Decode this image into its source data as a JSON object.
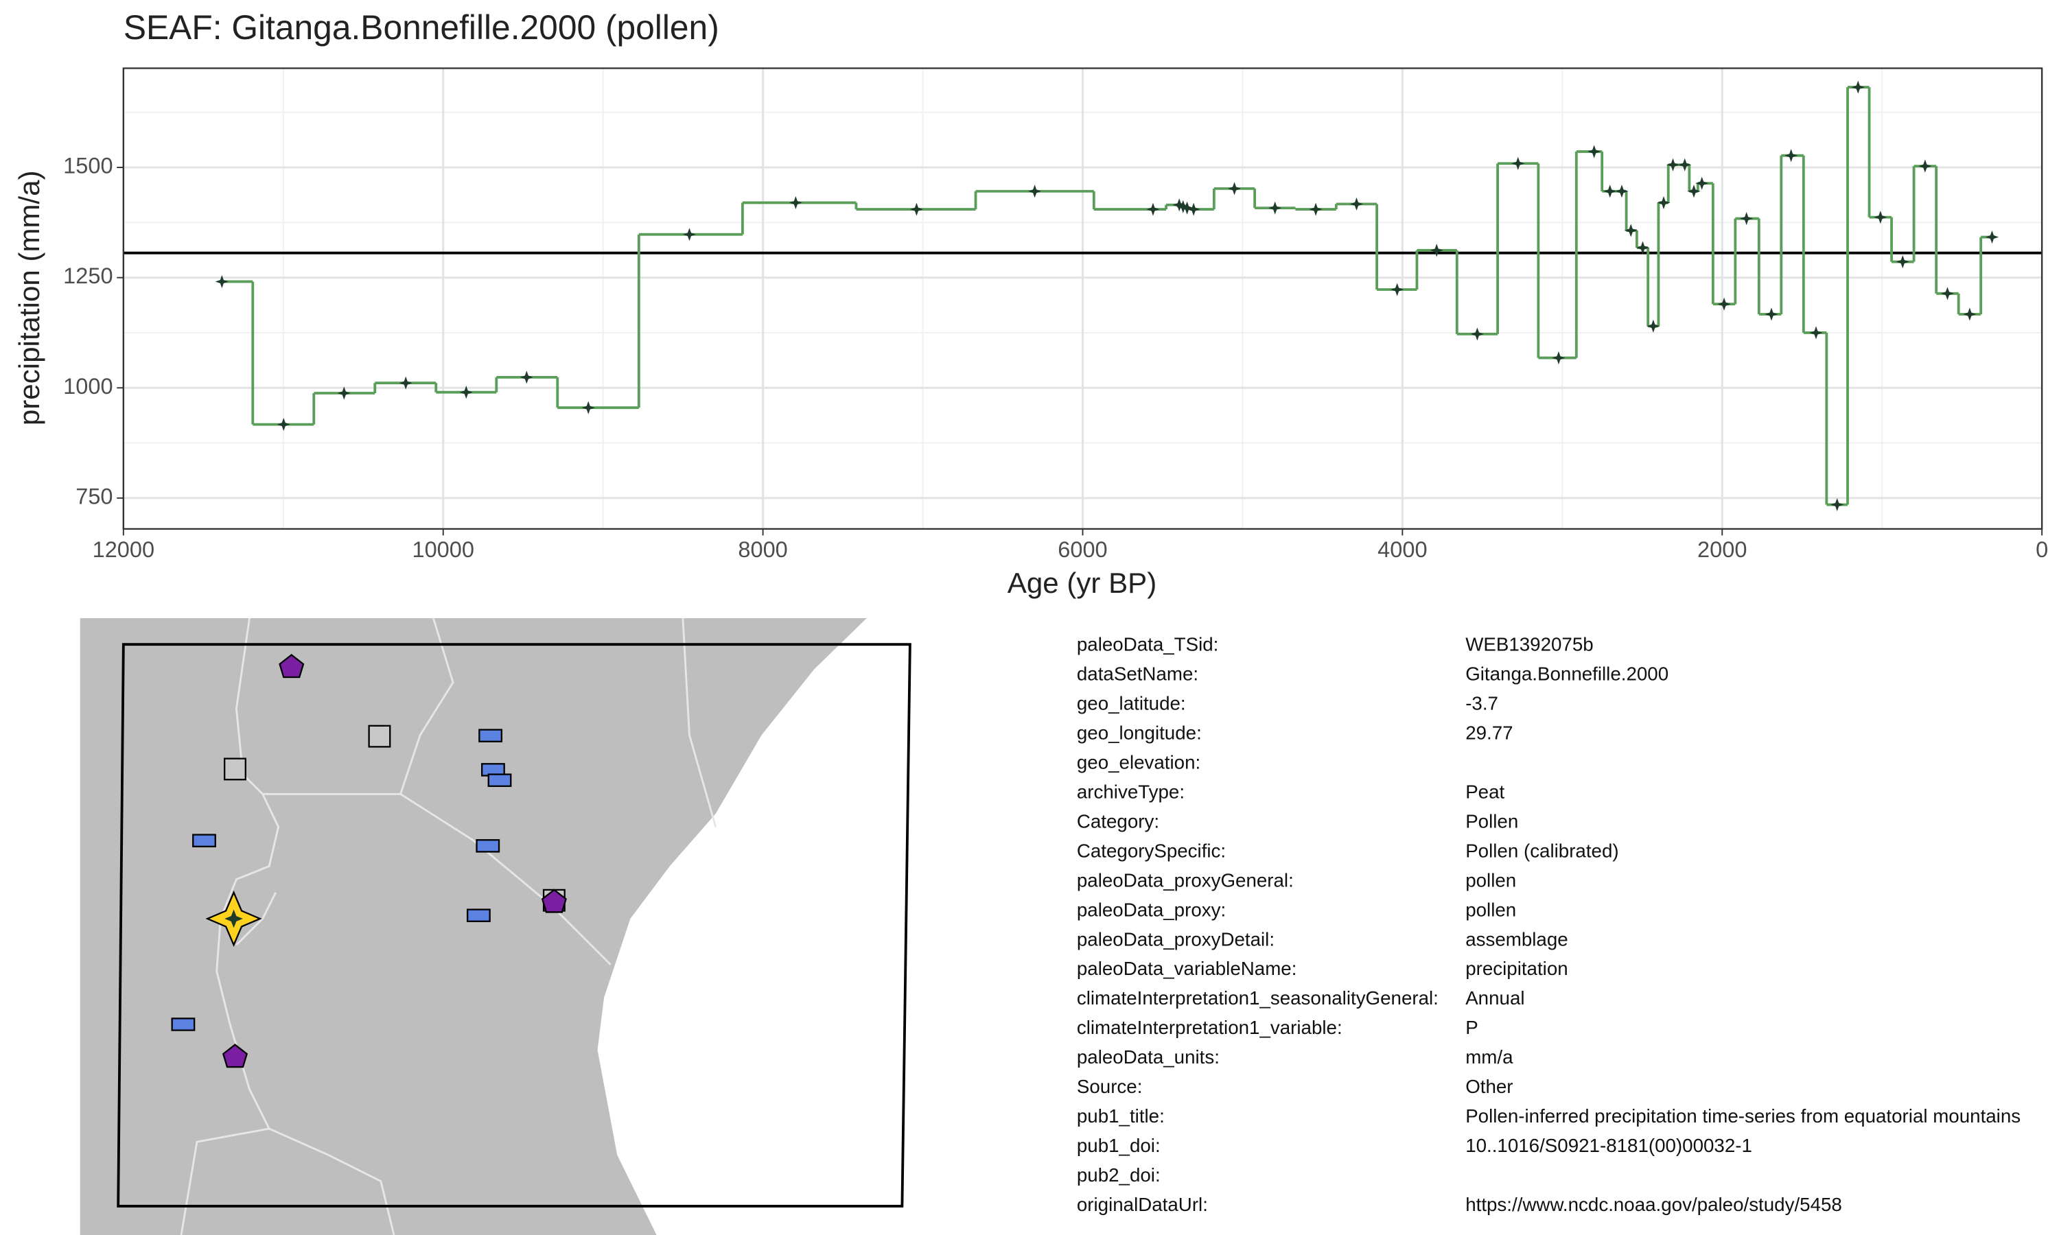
{
  "chart_data": {
    "type": "step",
    "title": "SEAF: Gitanga.Bonnefille.2000 (pollen)",
    "x_label": "Age (yr BP)",
    "y_label": "precipitation (mm/a)",
    "xlim": [
      12000,
      0
    ],
    "xticks": [
      12000,
      10000,
      8000,
      6000,
      4000,
      2000,
      0
    ],
    "ylim": [
      680,
      1725
    ],
    "yticks": [
      750,
      1000,
      1250,
      1500
    ],
    "grid": true,
    "reference_line": 1306,
    "series": [
      {
        "color": "#5a9e5a",
        "marker_color": "#1f3b2a",
        "x": [
          11384,
          10998,
          10620,
          10234,
          9856,
          9478,
          9092,
          8460,
          7795,
          7039,
          6300,
          5560,
          5396,
          5372,
          5347,
          5306,
          5051,
          4797,
          4542,
          4287,
          4033,
          3786,
          3532,
          3277,
          3023,
          2801,
          2702,
          2628,
          2571,
          2497,
          2431,
          2366,
          2308,
          2234,
          2177,
          2127,
          1988,
          1848,
          1692,
          1569,
          1413,
          1281,
          1150,
          1010,
          871,
          731,
          591,
          452,
          312
        ],
        "values": [
          1241,
          917,
          988,
          1011,
          990,
          1024,
          955,
          1348,
          1420,
          1405,
          1446,
          1405,
          1415,
          1411,
          1408,
          1405,
          1452,
          1408,
          1405,
          1417,
          1223,
          1312,
          1122,
          1509,
          1068,
          1536,
          1446,
          1446,
          1357,
          1318,
          1140,
          1420,
          1506,
          1506,
          1446,
          1464,
          1190,
          1384,
          1167,
          1527,
          1125,
          735,
          1682,
          1387,
          1286,
          1503,
          1214,
          1167,
          1342
        ]
      }
    ]
  },
  "metadata": {
    "rows": [
      {
        "key": "paleoData_TSid:",
        "value": "WEB1392075b"
      },
      {
        "key": "dataSetName:",
        "value": "Gitanga.Bonnefille.2000"
      },
      {
        "key": "geo_latitude:",
        "value": "-3.7"
      },
      {
        "key": "geo_longitude:",
        "value": "29.77"
      },
      {
        "key": "geo_elevation:"
      },
      {
        "key": "archiveType:",
        "value": "Peat"
      },
      {
        "key": "Category:",
        "value": "Pollen"
      },
      {
        "key": "CategorySpecific:",
        "value": "Pollen (calibrated)"
      },
      {
        "key": "paleoData_proxyGeneral:",
        "value": "pollen"
      },
      {
        "key": "paleoData_proxy:",
        "value": "pollen"
      },
      {
        "key": "paleoData_proxyDetail:",
        "value": "assemblage"
      },
      {
        "key": "paleoData_variableName:",
        "value": "precipitation"
      },
      {
        "key": "climateInterpretation1_seasonalityGeneral:",
        "value": "Annual"
      },
      {
        "key": "climateInterpretation1_variable:",
        "value": "P"
      },
      {
        "key": "paleoData_units:",
        "value": "mm/a"
      },
      {
        "key": "Source:",
        "value": "Other"
      },
      {
        "key": "pub1_title:",
        "value": "Pollen-inferred precipitation time-series from equatorial mountains"
      },
      {
        "key": "pub1_doi:",
        "value": "10..1016/S0921-8181(00)00032-1"
      },
      {
        "key": "pub2_doi:"
      },
      {
        "key": "originalDataUrl:",
        "value": "https://www.ncdc.noaa.gov/paleo/study/5458"
      }
    ]
  }
}
